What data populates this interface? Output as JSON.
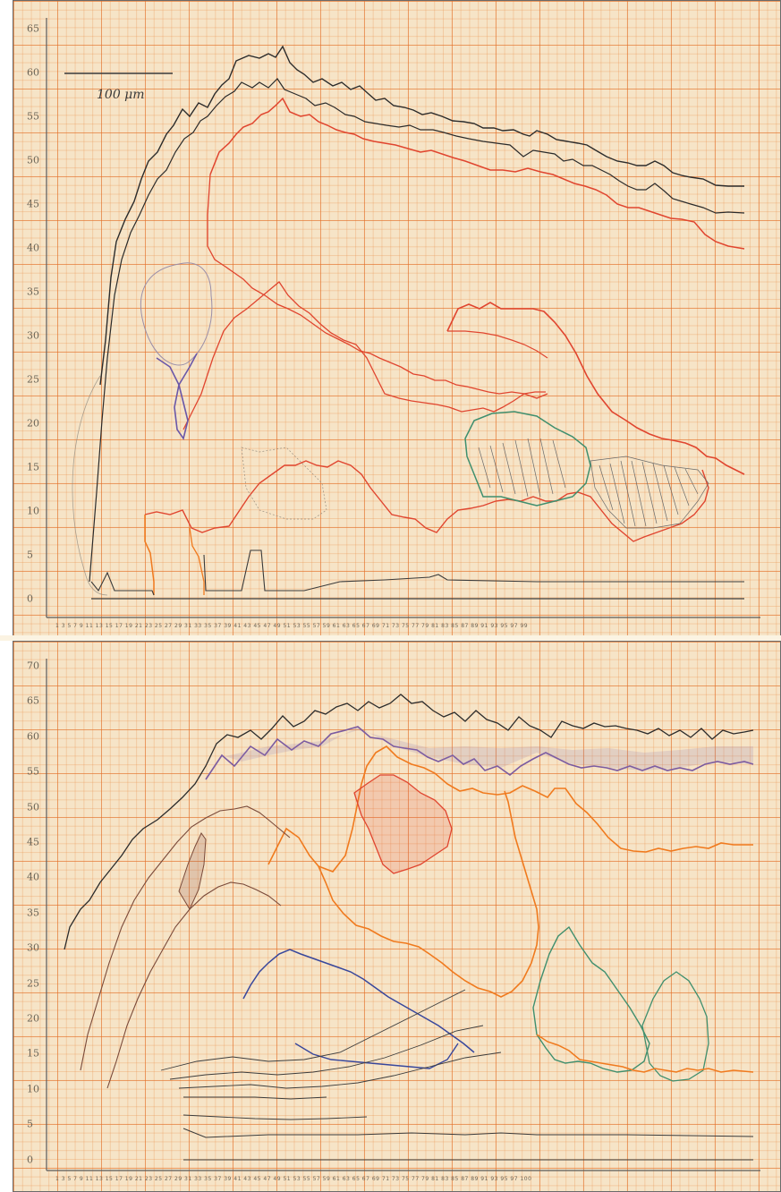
{
  "top_sheet": {
    "scale_bar_label": "100 μm",
    "y_ticks": [
      "65",
      "60",
      "55",
      "50",
      "45",
      "40",
      "35",
      "30",
      "25",
      "20",
      "15",
      "10",
      "5",
      "0"
    ],
    "x_tick_text": "1 3 5 7 9 11 13 15 17 19 21 23 25 27 29 31 33 35 37 39 41 43 45 47 49 51 53 55 57 59 61 63 65 67 69 71 73 75 77 79 81 83 85 87 89 91 93 95 97 99"
  },
  "bottom_sheet": {
    "y_ticks": [
      "70",
      "65",
      "60",
      "55",
      "50",
      "45",
      "40",
      "35",
      "30",
      "25",
      "20",
      "15",
      "10",
      "5",
      "0"
    ],
    "x_tick_text": "1 3 5 7 9 11 13 15 17 19 21 23 25 27 29 31 33 35 37 39 41 43 45 47 49 51 53 55 57 59 61 63 65 67 69 71 73 75 77 79 81 83 85 87 89 91 93 95 97 100"
  },
  "colors": {
    "paper": "#f6e4c7",
    "grid": "#e98c46",
    "pencil": "#3c3c3c",
    "red": "#e0452f",
    "orange": "#f07a1e",
    "green": "#3f8f6e",
    "blue": "#38479c",
    "purple": "#7a5aa0",
    "brown": "#7a4a3a"
  }
}
